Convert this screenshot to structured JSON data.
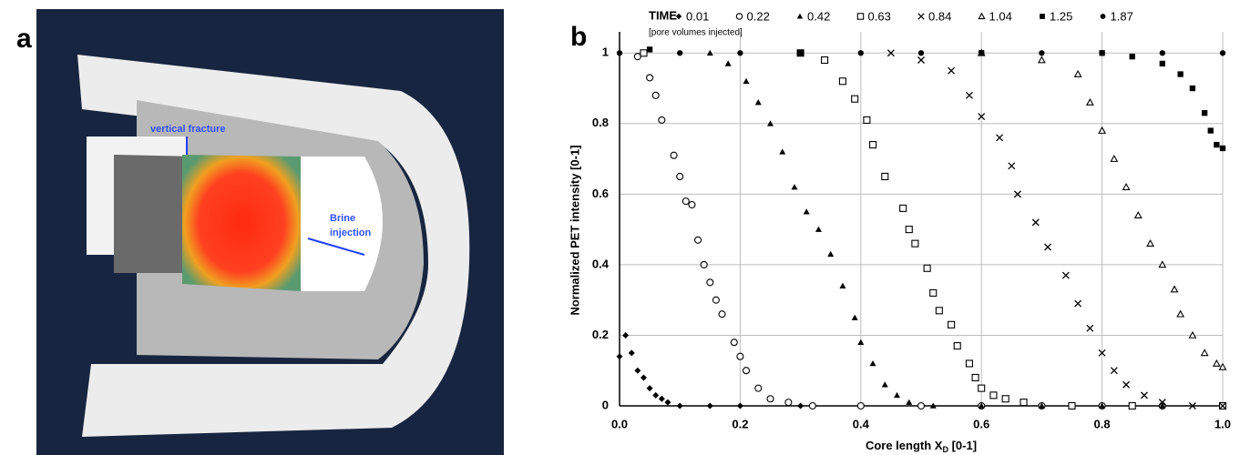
{
  "panel_a": {
    "label": "a",
    "annotations": [
      "vertical fracture",
      "Brine",
      "injection"
    ]
  },
  "chart_data": {
    "type": "scatter",
    "panel_label": "b",
    "legend_title": "TIME",
    "legend_subtitle": "[pore volumes injected]",
    "y_label": "Normalized PET intensity [0-1]",
    "x_label_parts": [
      "Core length X",
      "D",
      " [0-1]"
    ],
    "xlim": [
      0,
      1
    ],
    "ylim": [
      0,
      1.06
    ],
    "xticks": [
      {
        "value": 0,
        "label": "0.0"
      },
      0.2,
      0.4,
      0.6,
      0.8,
      {
        "value": 1,
        "label": "1.0"
      }
    ],
    "yticks": [
      0,
      0.2,
      0.4,
      0.6,
      0.8,
      1
    ],
    "grid": true,
    "series": [
      {
        "name": "0.01",
        "marker": "diamond",
        "color": "#000000",
        "x": [
          0,
          0.01,
          0.02,
          0.03,
          0.04,
          0.05,
          0.06,
          0.07,
          0.08,
          0.1,
          0.15,
          0.2,
          0.3,
          0.4,
          0.5,
          0.6,
          0.7,
          0.8,
          0.9,
          1.0
        ],
        "values": [
          0.14,
          0.2,
          0.15,
          0.1,
          0.08,
          0.05,
          0.03,
          0.02,
          0.01,
          0,
          0,
          0,
          0,
          0,
          0,
          0,
          0,
          0,
          0,
          0
        ]
      },
      {
        "name": "0.22",
        "marker": "circle-open",
        "color": "#000000",
        "x": [
          0.03,
          0.05,
          0.06,
          0.07,
          0.09,
          0.1,
          0.11,
          0.12,
          0.13,
          0.14,
          0.15,
          0.16,
          0.17,
          0.19,
          0.2,
          0.21,
          0.23,
          0.25,
          0.28,
          0.32,
          0.4,
          0.5,
          0.6,
          0.7,
          0.8,
          0.9,
          1.0
        ],
        "values": [
          0.99,
          0.93,
          0.88,
          0.81,
          0.71,
          0.65,
          0.58,
          0.57,
          0.47,
          0.4,
          0.35,
          0.3,
          0.26,
          0.18,
          0.14,
          0.1,
          0.05,
          0.02,
          0.01,
          0,
          0,
          0,
          0,
          0,
          0,
          0,
          0
        ]
      },
      {
        "name": "0.42",
        "marker": "triangle",
        "color": "#000000",
        "x": [
          0.15,
          0.18,
          0.21,
          0.23,
          0.25,
          0.27,
          0.29,
          0.31,
          0.33,
          0.35,
          0.37,
          0.39,
          0.4,
          0.42,
          0.44,
          0.46,
          0.48,
          0.52,
          0.6,
          0.7,
          0.8,
          0.9,
          1.0
        ],
        "values": [
          1,
          0.97,
          0.92,
          0.86,
          0.8,
          0.72,
          0.62,
          0.55,
          0.5,
          0.43,
          0.34,
          0.25,
          0.18,
          0.12,
          0.06,
          0.03,
          0.01,
          0,
          0,
          0,
          0,
          0,
          0
        ]
      },
      {
        "name": "0.63",
        "marker": "square-open",
        "color": "#000000",
        "x": [
          0.04,
          0.3,
          0.34,
          0.37,
          0.39,
          0.41,
          0.42,
          0.44,
          0.47,
          0.48,
          0.49,
          0.51,
          0.52,
          0.53,
          0.55,
          0.56,
          0.58,
          0.59,
          0.6,
          0.62,
          0.64,
          0.67,
          0.75,
          0.85,
          1.0
        ],
        "values": [
          1,
          1,
          0.98,
          0.92,
          0.87,
          0.81,
          0.74,
          0.65,
          0.56,
          0.5,
          0.46,
          0.39,
          0.32,
          0.27,
          0.23,
          0.17,
          0.12,
          0.08,
          0.05,
          0.03,
          0.02,
          0.01,
          0,
          0,
          0
        ]
      },
      {
        "name": "0.84",
        "marker": "cross",
        "color": "#000000",
        "x": [
          0.45,
          0.5,
          0.55,
          0.58,
          0.6,
          0.63,
          0.65,
          0.66,
          0.69,
          0.71,
          0.74,
          0.76,
          0.78,
          0.8,
          0.82,
          0.84,
          0.87,
          0.9,
          0.95,
          1.0
        ],
        "values": [
          1,
          0.98,
          0.95,
          0.88,
          0.82,
          0.76,
          0.68,
          0.6,
          0.52,
          0.45,
          0.37,
          0.29,
          0.22,
          0.15,
          0.1,
          0.06,
          0.03,
          0.01,
          0,
          0
        ]
      },
      {
        "name": "1.04",
        "marker": "triangle-open",
        "color": "#000000",
        "x": [
          0.6,
          0.7,
          0.76,
          0.78,
          0.8,
          0.82,
          0.84,
          0.86,
          0.88,
          0.9,
          0.92,
          0.93,
          0.95,
          0.97,
          0.99,
          1.0
        ],
        "values": [
          1,
          0.98,
          0.94,
          0.86,
          0.78,
          0.7,
          0.62,
          0.54,
          0.46,
          0.4,
          0.33,
          0.26,
          0.2,
          0.15,
          0.12,
          0.11
        ]
      },
      {
        "name": "1.25",
        "marker": "square",
        "color": "#000000",
        "x": [
          0.05,
          0.3,
          0.6,
          0.8,
          0.85,
          0.9,
          0.93,
          0.95,
          0.97,
          0.98,
          0.99,
          1.0
        ],
        "values": [
          1.01,
          1,
          1,
          1,
          0.99,
          0.97,
          0.94,
          0.9,
          0.83,
          0.78,
          0.74,
          0.73
        ]
      },
      {
        "name": "1.87",
        "marker": "circle",
        "color": "#000000",
        "x": [
          0,
          0.1,
          0.2,
          0.3,
          0.4,
          0.5,
          0.6,
          0.7,
          0.8,
          0.9,
          1.0
        ],
        "values": [
          1,
          1,
          1,
          1,
          1,
          1,
          1,
          1,
          1,
          1,
          1
        ]
      }
    ]
  }
}
